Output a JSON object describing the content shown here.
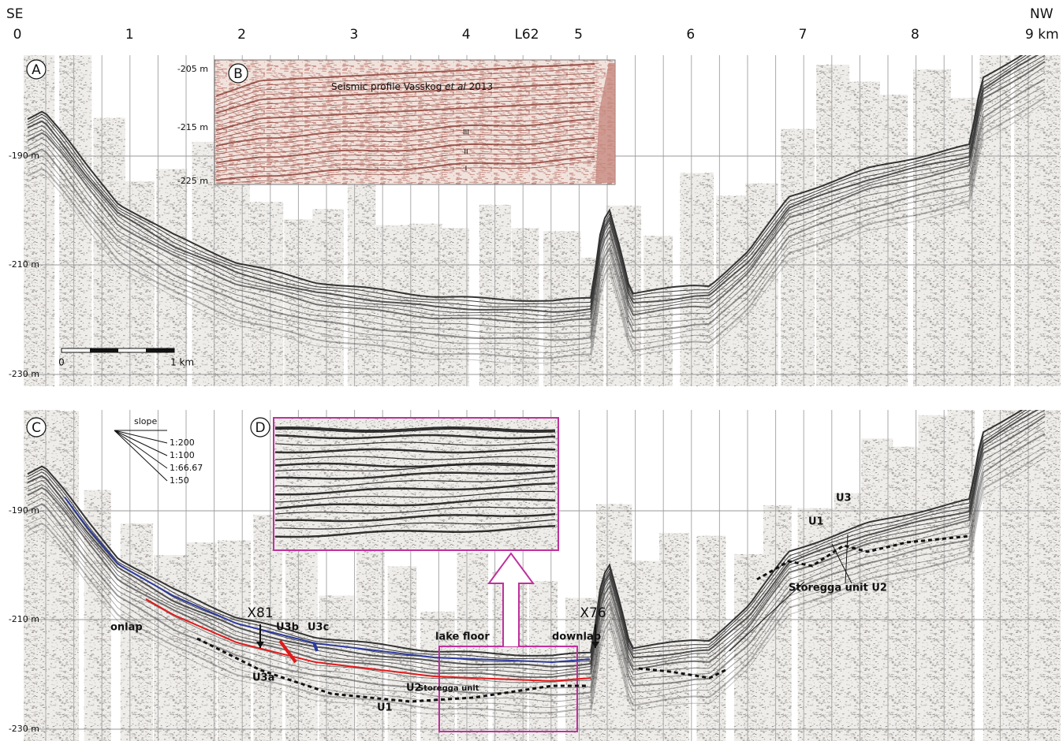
{
  "header": {
    "left": "SE",
    "right": "NW",
    "line": "L62",
    "distance_ticks": [
      "0",
      "1",
      "2",
      "3",
      "4",
      "5",
      "6",
      "7",
      "8",
      "9 km"
    ]
  },
  "panel_a": {
    "label": "A",
    "depth_labels": [
      "-190 m",
      "-210 m",
      "-230 m"
    ],
    "scale_bar": [
      "0",
      "1 km"
    ]
  },
  "panel_b": {
    "label": "B",
    "title_parts": [
      "Seismic profile Vasskog ",
      "et al",
      " 2013"
    ],
    "depth_labels": [
      "-205 m",
      "-215 m",
      "-225 m"
    ],
    "units": [
      "III",
      "II",
      "I"
    ]
  },
  "panel_c": {
    "label": "C",
    "depth_labels": [
      "-190 m",
      "-210 m",
      "-230 m"
    ],
    "slope": {
      "title": "slope",
      "ratios": [
        "1:200",
        "1:100",
        "1:66.67",
        "1:50"
      ]
    },
    "annotations": [
      "X81",
      "X76",
      "onlap",
      "U3b",
      "U3c",
      "U3a",
      "lake floor",
      "downlap",
      "U2",
      "Storegga unit",
      "U1",
      "U1",
      "U3",
      "Storegga unit U2"
    ]
  },
  "panel_d": {
    "label": "D"
  }
}
